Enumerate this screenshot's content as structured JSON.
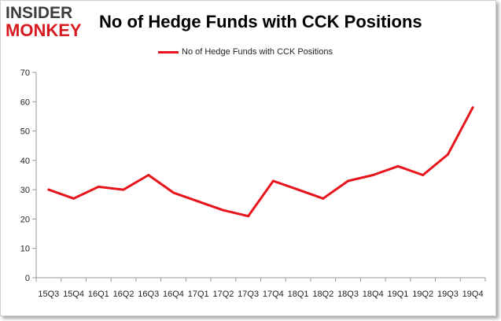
{
  "logo": {
    "line1": "INSIDER",
    "line2": "MONKEY"
  },
  "colors": {
    "series": "#e8141b",
    "axis": "#999999",
    "gridline": "#e0e0e0"
  },
  "chart_data": {
    "type": "line",
    "title": "No of Hedge Funds with CCK Positions",
    "categories": [
      "15Q3",
      "15Q4",
      "16Q1",
      "16Q2",
      "16Q3",
      "16Q4",
      "17Q1",
      "17Q2",
      "17Q3",
      "17Q4",
      "18Q1",
      "18Q2",
      "18Q3",
      "18Q4",
      "19Q1",
      "19Q2",
      "19Q3",
      "19Q4"
    ],
    "series": [
      {
        "name": "No of Hedge Funds with CCK Positions",
        "values": [
          30,
          27,
          31,
          30,
          35,
          29,
          26,
          23,
          21,
          33,
          30,
          27,
          33,
          35,
          38,
          35,
          42,
          58
        ]
      }
    ],
    "ylim": [
      0,
      70
    ],
    "yticks": [
      0,
      10,
      20,
      30,
      40,
      50,
      60,
      70
    ],
    "legend_position": "top-center",
    "grid": false
  }
}
